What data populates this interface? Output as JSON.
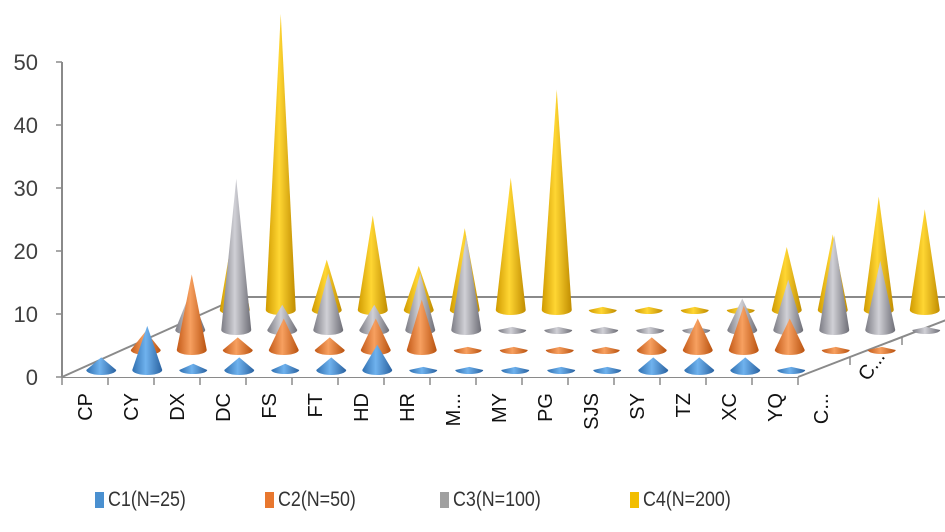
{
  "chart_data": {
    "type": "3d-cone-bar",
    "title": "",
    "xlabel": "",
    "ylabel": "",
    "ylim": [
      0,
      50
    ],
    "yticks": [
      0,
      10,
      20,
      30,
      40,
      50
    ],
    "categories": [
      "CP",
      "CY",
      "DX",
      "DC",
      "FS",
      "FT",
      "HD",
      "HR",
      "M...",
      "MY",
      "PG",
      "SJS",
      "SY",
      "TZ",
      "XC",
      "YQ",
      "C..."
    ],
    "depth_labels": [
      "C...",
      "C..."
    ],
    "series": [
      {
        "name": "C1(N=25)",
        "color": "#4A90D0",
        "values": [
          2,
          7,
          1,
          2,
          1,
          2,
          4,
          0.5,
          0.5,
          0.5,
          0.5,
          0.5,
          2,
          2,
          2,
          0.5,
          null
        ]
      },
      {
        "name": "C2(N=50)",
        "color": "#E8772E",
        "values": [
          3,
          12,
          2,
          5,
          2,
          5,
          8,
          0.5,
          0.5,
          0.5,
          0.5,
          2,
          5,
          7,
          5,
          0.5,
          0.5
        ]
      },
      {
        "name": "C3(N=100)",
        "color": "#A0A0A0",
        "values": [
          6,
          24,
          4,
          9,
          4,
          9,
          15,
          0.5,
          0.5,
          0.5,
          0.5,
          0.5,
          5,
          8,
          15,
          11,
          0.5
        ]
      },
      {
        "name": "C4(N=200)",
        "color": "#F2BE00",
        "values": [
          14,
          47,
          8,
          15,
          7,
          13,
          21,
          35,
          0.5,
          0.5,
          0.5,
          0.5,
          10,
          12,
          18,
          16,
          0.5
        ]
      }
    ],
    "grid": false,
    "legend_position": "bottom"
  },
  "legend": {
    "items": [
      {
        "label": "C1(N=25)",
        "color": "#4A90D0"
      },
      {
        "label": "C2(N=50)",
        "color": "#E8772E"
      },
      {
        "label": "C3(N=100)",
        "color": "#A0A0A0"
      },
      {
        "label": "C4(N=200)",
        "color": "#F2BE00"
      }
    ]
  }
}
